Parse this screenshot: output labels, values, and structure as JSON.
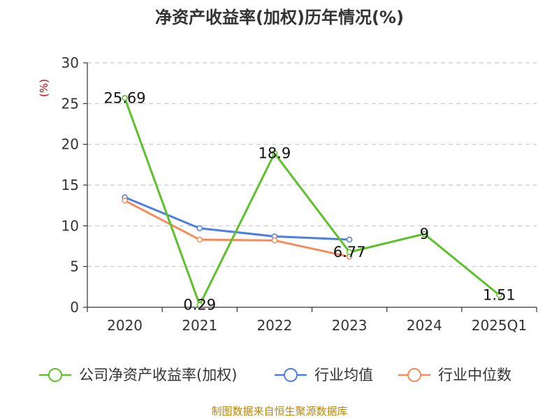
{
  "chart_data": {
    "type": "line",
    "title": "净资产收益率(加权)历年情况(%)",
    "ylabel": "(%)",
    "categories": [
      "2020",
      "2021",
      "2022",
      "2023",
      "2024",
      "2025Q1"
    ],
    "yticks": [
      "0",
      "5",
      "10",
      "15",
      "20",
      "25",
      "30"
    ],
    "ylim": [
      0,
      30
    ],
    "grid": "horizontal dashed",
    "legend_position": "bottom",
    "series": [
      {
        "name": "公司净资产收益率(加权)",
        "color": "#5dc12a",
        "values": [
          25.69,
          0.29,
          18.9,
          6.77,
          9,
          1.51
        ],
        "labels": [
          "25.69",
          "0.29",
          "18.9",
          "6.77",
          "9",
          "1.51"
        ]
      },
      {
        "name": "行业均值",
        "color": "#4e7fe0",
        "values": [
          13.5,
          9.7,
          8.7,
          8.3,
          null,
          null
        ]
      },
      {
        "name": "行业中位数",
        "color": "#f68c5a",
        "values": [
          13.1,
          8.3,
          8.2,
          6.2,
          null,
          null
        ]
      }
    ]
  },
  "footer": {
    "source": "制图数据来自恒生聚源数据库"
  }
}
